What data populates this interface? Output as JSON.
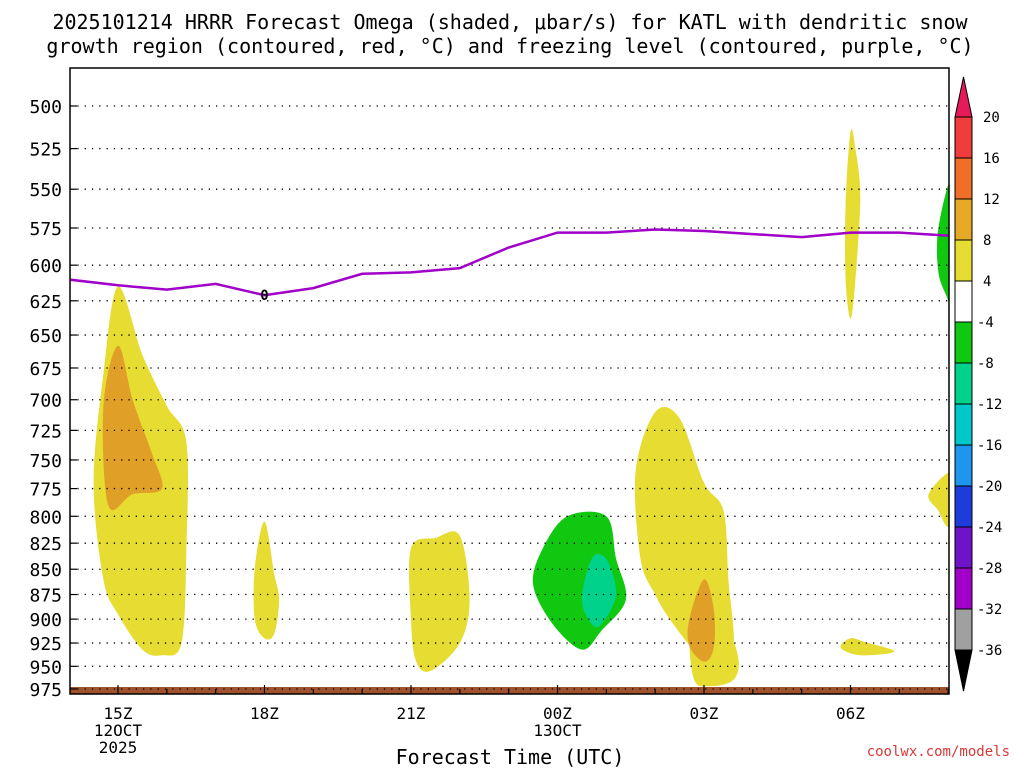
{
  "title_line1": "2025101214 HRRR Forecast Omega (shaded, μbar/s) for KATL with dendritic snow",
  "title_line2": "growth region (contoured, red, °C) and freezing level (contoured, purple, °C)",
  "credit": "coolwx.com/models",
  "colors": {
    "yellow": "#e6dc32",
    "orange": "#e0a028",
    "green": "#10c810",
    "teal": "#00d28c",
    "freezing_line": "#a000c8",
    "terrain": "#a0522d",
    "grid": "#000000"
  },
  "chart_data": {
    "type": "heatmap",
    "title": "2025101214 HRRR Forecast Omega (shaded, μbar/s) for KATL with dendritic snow growth region (contoured, red, °C) and freezing level (contoured, purple, °C)",
    "xlabel": "Forecast Time (UTC)",
    "ylabel": "",
    "xlim": [
      -1,
      17
    ],
    "ylim": [
      980,
      475
    ],
    "y_scale": "log-pressure",
    "x_ticks": [
      {
        "hour": 0,
        "lines": [
          "15Z",
          "12OCT",
          "2025"
        ]
      },
      {
        "hour": 3,
        "lines": [
          "18Z"
        ]
      },
      {
        "hour": 6,
        "lines": [
          "21Z"
        ]
      },
      {
        "hour": 9,
        "lines": [
          "00Z",
          "13OCT"
        ]
      },
      {
        "hour": 12,
        "lines": [
          "03Z"
        ]
      },
      {
        "hour": 15,
        "lines": [
          "06Z"
        ]
      }
    ],
    "y_ticks": [
      500,
      525,
      550,
      575,
      600,
      625,
      650,
      675,
      700,
      725,
      750,
      775,
      800,
      825,
      850,
      875,
      900,
      925,
      950,
      975
    ],
    "colorbar": {
      "labels": [
        "20",
        "16",
        "12",
        "8",
        "4",
        "-4",
        "-8",
        "-12",
        "-16",
        "-20",
        "-24",
        "-28",
        "-32",
        "-36"
      ],
      "colors": [
        "#e6195a",
        "#f03c3c",
        "#f06e28",
        "#e6aa28",
        "#e6dc32",
        "#ffffff",
        "#10c810",
        "#00d28c",
        "#00c8c8",
        "#1e96f0",
        "#1e3cdc",
        "#6e14c8",
        "#a000c8",
        "#a0a0a0",
        "#000000"
      ]
    },
    "freezing_level": {
      "label": "0",
      "hours": [
        -1,
        0,
        1,
        2,
        3,
        4,
        5,
        6,
        7,
        8,
        9,
        10,
        11,
        12,
        13,
        14,
        15,
        16,
        17
      ],
      "pressure": [
        610,
        614,
        617,
        613,
        621,
        616,
        606,
        605,
        602,
        588,
        578,
        578,
        576,
        577,
        579,
        581,
        578,
        578,
        580
      ]
    },
    "shaded_regions": [
      {
        "color": "yellow",
        "points": [
          [
            0,
            615
          ],
          [
            -0.3,
            680
          ],
          [
            -0.5,
            770
          ],
          [
            -0.3,
            860
          ],
          [
            0,
            895
          ],
          [
            0.5,
            932
          ],
          [
            0.9,
            938
          ],
          [
            1.3,
            925
          ],
          [
            1.4,
            830
          ],
          [
            1.4,
            735
          ],
          [
            1.0,
            705
          ],
          [
            0.5,
            665
          ]
        ]
      },
      {
        "color": "orange",
        "points": [
          [
            0,
            658
          ],
          [
            -0.3,
            705
          ],
          [
            -0.2,
            790
          ],
          [
            0.3,
            780
          ],
          [
            0.9,
            775
          ],
          [
            0.7,
            745
          ],
          [
            0.3,
            700
          ]
        ]
      },
      {
        "color": "yellow",
        "points": [
          [
            3.0,
            805
          ],
          [
            2.8,
            850
          ],
          [
            2.8,
            900
          ],
          [
            3.0,
            920
          ],
          [
            3.2,
            915
          ],
          [
            3.3,
            880
          ],
          [
            3.2,
            855
          ]
        ]
      },
      {
        "color": "yellow",
        "points": [
          [
            6.0,
            830
          ],
          [
            6.0,
            900
          ],
          [
            6.1,
            944
          ],
          [
            6.4,
            955
          ],
          [
            7.0,
            925
          ],
          [
            7.2,
            880
          ],
          [
            7.0,
            818
          ],
          [
            6.5,
            820
          ]
        ]
      },
      {
        "color": "green",
        "points": [
          [
            9.2,
            800
          ],
          [
            8.7,
            830
          ],
          [
            8.5,
            865
          ],
          [
            8.9,
            905
          ],
          [
            9.5,
            932
          ],
          [
            9.9,
            912
          ],
          [
            10.4,
            880
          ],
          [
            10.2,
            840
          ],
          [
            10.0,
            800
          ]
        ]
      },
      {
        "color": "teal",
        "points": [
          [
            9.7,
            840
          ],
          [
            9.5,
            880
          ],
          [
            9.7,
            905
          ],
          [
            9.9,
            905
          ],
          [
            10.2,
            875
          ],
          [
            10.0,
            840
          ]
        ]
      },
      {
        "color": "yellow",
        "points": [
          [
            11.0,
            710
          ],
          [
            10.6,
            760
          ],
          [
            10.7,
            840
          ],
          [
            11.0,
            875
          ],
          [
            11.3,
            900
          ],
          [
            11.9,
            940
          ],
          [
            12.2,
            950
          ],
          [
            12.6,
            930
          ],
          [
            12.5,
            860
          ],
          [
            12.4,
            795
          ],
          [
            12.0,
            770
          ],
          [
            11.5,
            715
          ]
        ]
      },
      {
        "color": "yellow",
        "points": [
          [
            11.8,
            880
          ],
          [
            11.7,
            920
          ],
          [
            11.8,
            965
          ],
          [
            12.1,
            972
          ],
          [
            12.6,
            965
          ],
          [
            12.7,
            940
          ],
          [
            12.4,
            900
          ],
          [
            12.1,
            895
          ]
        ]
      },
      {
        "color": "orange",
        "points": [
          [
            12.0,
            860
          ],
          [
            11.7,
            900
          ],
          [
            11.7,
            928
          ],
          [
            12.0,
            945
          ],
          [
            12.2,
            930
          ],
          [
            12.2,
            890
          ]
        ]
      },
      {
        "color": "yellow",
        "points": [
          [
            15.0,
            515
          ],
          [
            14.9,
            560
          ],
          [
            14.9,
            610
          ],
          [
            15.0,
            638
          ],
          [
            15.1,
            610
          ],
          [
            15.2,
            555
          ],
          [
            15.1,
            525
          ]
        ]
      },
      {
        "color": "yellow",
        "points": [
          [
            14.8,
            930
          ],
          [
            15.2,
            938
          ],
          [
            15.9,
            934
          ],
          [
            15.3,
            924
          ],
          [
            15.0,
            920
          ]
        ]
      },
      {
        "color": "yellow",
        "points": [
          [
            17.1,
            760
          ],
          [
            16.6,
            780
          ],
          [
            16.8,
            795
          ],
          [
            17.0,
            810
          ],
          [
            17.2,
            795
          ]
        ]
      },
      {
        "color": "green",
        "points": [
          [
            17.1,
            540
          ],
          [
            16.8,
            575
          ],
          [
            16.8,
            605
          ],
          [
            17.0,
            625
          ],
          [
            17.2,
            650
          ],
          [
            17.3,
            560
          ]
        ]
      }
    ]
  }
}
